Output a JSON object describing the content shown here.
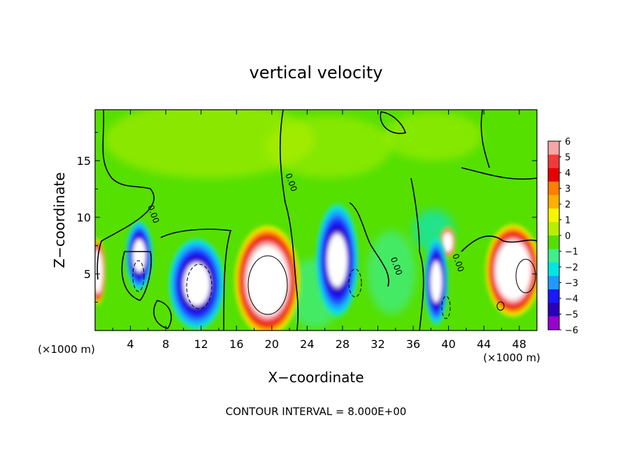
{
  "chart_data": {
    "type": "heatmap",
    "title": "vertical velocity",
    "xlabel": "X−coordinate",
    "ylabel": "Z−coordinate",
    "x_unit_left": "(×1000 m)",
    "x_unit_right": "(×1000 m)",
    "footer": "CONTOUR INTERVAL = 8.000E+00",
    "xlim": [
      0,
      50
    ],
    "ylim": [
      0,
      19.5
    ],
    "x_ticks": [
      {
        "value": 4,
        "label": "4"
      },
      {
        "value": 8,
        "label": "8"
      },
      {
        "value": 12,
        "label": "12"
      },
      {
        "value": 16,
        "label": "16"
      },
      {
        "value": 20,
        "label": "20"
      },
      {
        "value": 24,
        "label": "24"
      },
      {
        "value": 28,
        "label": "28"
      },
      {
        "value": 32,
        "label": "32"
      },
      {
        "value": 36,
        "label": "36"
      },
      {
        "value": 40,
        "label": "40"
      },
      {
        "value": 44,
        "label": "44"
      },
      {
        "value": 48,
        "label": "48"
      }
    ],
    "y_ticks": [
      {
        "value": 5,
        "label": "5"
      },
      {
        "value": 10,
        "label": "10"
      },
      {
        "value": 15,
        "label": "15"
      }
    ],
    "colorbar": {
      "labels": [
        "6",
        "5",
        "4",
        "3",
        "2",
        "1",
        "0",
        "−1",
        "−2",
        "−3",
        "−4",
        "−5",
        "−6"
      ],
      "colors": [
        "#f7a6a6",
        "#f23a3a",
        "#e80000",
        "#ff7f00",
        "#ffb000",
        "#f5f500",
        "#b6ef00",
        "#55e000",
        "#3fee8f",
        "#00e5e5",
        "#1f9aff",
        "#1a1aff",
        "#2a00b8",
        "#9a00d0"
      ]
    },
    "contour_labels": [
      {
        "x": 6.3,
        "y": 10.2,
        "text": "0.00"
      },
      {
        "x": 21.9,
        "y": 13.0,
        "text": "0.00"
      },
      {
        "x": 33.8,
        "y": 5.6,
        "text": "0.00"
      },
      {
        "x": 40.8,
        "y": 5.9,
        "text": "0.00"
      }
    ],
    "features": [
      {
        "kind": "updraft",
        "x": 19.5,
        "z": 4.4,
        "rx": 3.8,
        "rz": 5.0
      },
      {
        "kind": "updraft",
        "x": 47.3,
        "z": 5.3,
        "rx": 3.2,
        "rz": 4.2
      },
      {
        "kind": "updraft",
        "x": 0.3,
        "z": 5.2,
        "rx": 0.9,
        "rz": 3.0
      },
      {
        "kind": "updraft",
        "x": 39.9,
        "z": 7.8,
        "rx": 0.9,
        "rz": 1.4
      },
      {
        "kind": "downdraft",
        "x": 5.0,
        "z": 6.6,
        "rx": 1.6,
        "rz": 3.2
      },
      {
        "kind": "downdraft",
        "x": 11.5,
        "z": 4.1,
        "rx": 3.3,
        "rz": 4.2
      },
      {
        "kind": "downdraft",
        "x": 27.4,
        "z": 6.2,
        "rx": 2.5,
        "rz": 5.2
      },
      {
        "kind": "downdraft",
        "x": 38.6,
        "z": 4.3,
        "rx": 1.4,
        "rz": 4.0
      }
    ]
  }
}
